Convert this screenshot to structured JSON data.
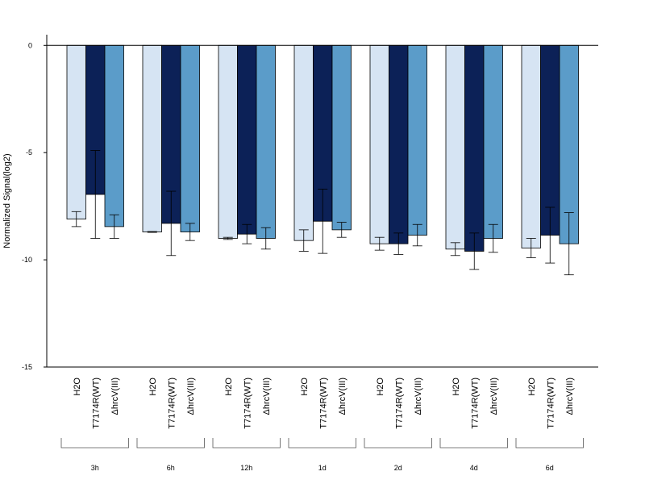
{
  "chart_data": {
    "type": "bar",
    "title": "",
    "xlabel": "",
    "ylabel": "Normalized Signal(log2)",
    "ylim": [
      -15,
      0.5
    ],
    "yticks": [
      0,
      -5,
      -10,
      -15
    ],
    "grid": false,
    "legend": "none",
    "group_labels": [
      "3h",
      "6h",
      "12h",
      "1d",
      "2d",
      "4d",
      "6d"
    ],
    "bar_labels": [
      "H2O",
      "T7174R(WT)",
      "ΔhrcV(III)"
    ],
    "colors": [
      "#d6e4f3",
      "#0c2157",
      "#5b9cc9"
    ],
    "series": [
      {
        "values": [
          -8.1,
          -8.7,
          -9.0,
          -9.1,
          -9.25,
          -9.5,
          -9.45
        ],
        "errors": [
          0.35,
          0.02,
          0.05,
          0.5,
          0.3,
          0.3,
          0.45
        ]
      },
      {
        "values": [
          -6.95,
          -8.3,
          -8.8,
          -8.2,
          -9.25,
          -9.6,
          -8.85
        ],
        "errors": [
          2.05,
          1.5,
          0.45,
          1.5,
          0.5,
          0.85,
          1.3
        ]
      },
      {
        "values": [
          -8.45,
          -8.7,
          -9.0,
          -8.6,
          -8.85,
          -9.0,
          -9.25
        ],
        "errors": [
          0.55,
          0.4,
          0.5,
          0.35,
          0.5,
          0.65,
          1.45
        ]
      }
    ]
  }
}
